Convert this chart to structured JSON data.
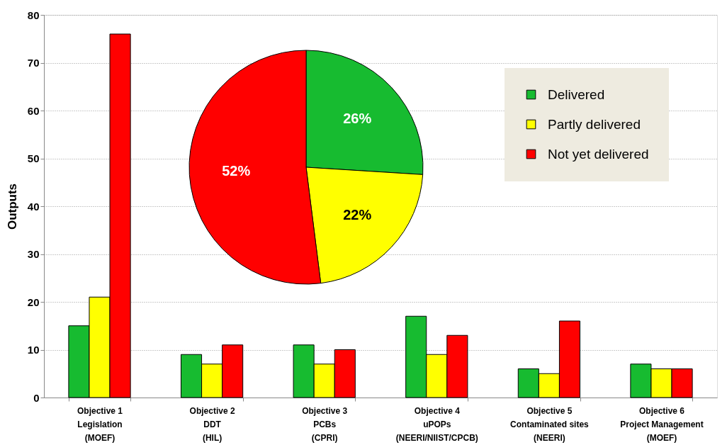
{
  "chart_data": [
    {
      "type": "bar",
      "ylabel": "Outputs",
      "categories": [
        "Objective 1\nLegislation\n(MOEF)",
        "Objective 2\nDDT\n(HIL)",
        "Objective 3\nPCBs\n(CPRI)",
        "Objective 4\nuPOPs\n(NEERI/NIIST/CPCB)",
        "Objective 5\nContaminated sites\n(NEERI)",
        "Objective 6\nProject Management\n(MOEF)"
      ],
      "series": [
        {
          "name": "Delivered",
          "color": "#17bb30",
          "values": [
            15,
            9,
            11,
            17,
            6,
            7
          ]
        },
        {
          "name": "Partly delivered",
          "color": "#ffff00",
          "values": [
            21,
            7,
            7,
            9,
            5,
            6
          ]
        },
        {
          "name": "Not yet delivered",
          "color": "#ff0000",
          "values": [
            76,
            11,
            10,
            13,
            16,
            6
          ]
        }
      ],
      "ylim": [
        0,
        80
      ],
      "yticks": [
        0,
        10,
        20,
        30,
        40,
        50,
        60,
        70,
        80
      ],
      "grid": "y",
      "legend": "top right"
    },
    {
      "type": "pie",
      "categories": [
        null,
        null,
        null
      ],
      "values": [
        26,
        22,
        52
      ],
      "colors": [
        "#17bb30",
        "#ffff00",
        "#ff0000"
      ],
      "value_labels": [
        "26%",
        "22%",
        "52%"
      ]
    }
  ]
}
